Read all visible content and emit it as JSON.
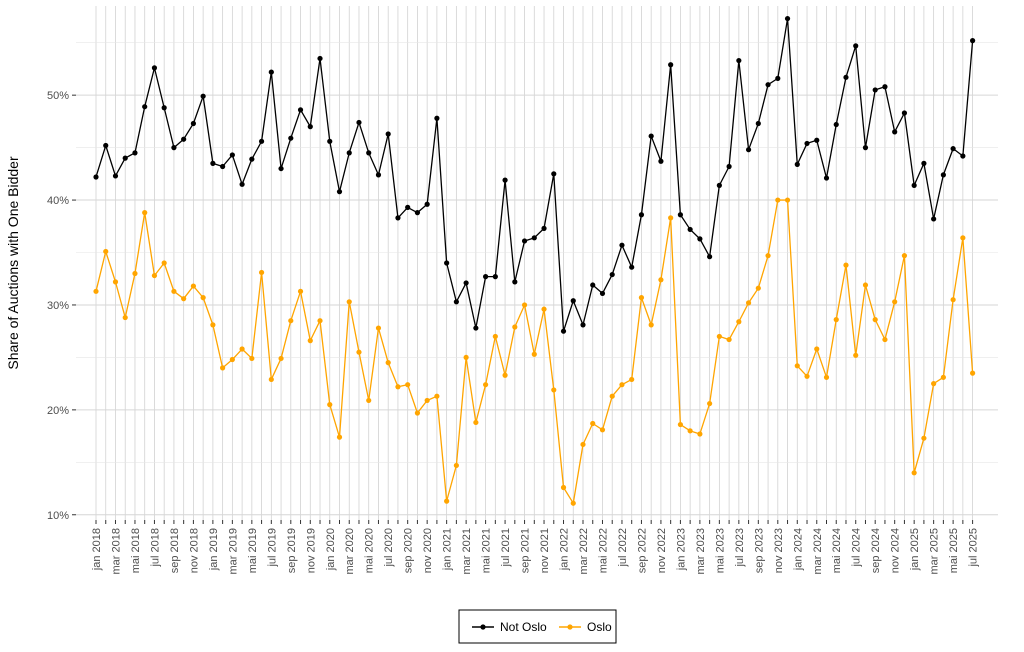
{
  "chart_data": {
    "type": "line",
    "title": "",
    "xlabel": "",
    "ylabel": "Share of Auctions with One Bidder",
    "ylim": [
      9.5,
      58.5
    ],
    "yticks": [
      10,
      20,
      30,
      40,
      50
    ],
    "ytick_labels": [
      "10%",
      "20%",
      "30%",
      "40%",
      "50%"
    ],
    "grid": true,
    "legend_position": "bottom",
    "x": [
      "2018-01",
      "2018-02",
      "2018-03",
      "2018-04",
      "2018-05",
      "2018-06",
      "2018-07",
      "2018-08",
      "2018-09",
      "2018-10",
      "2018-11",
      "2018-12",
      "2019-01",
      "2019-02",
      "2019-03",
      "2019-04",
      "2019-05",
      "2019-06",
      "2019-07",
      "2019-08",
      "2019-09",
      "2019-10",
      "2019-11",
      "2019-12",
      "2020-01",
      "2020-02",
      "2020-03",
      "2020-04",
      "2020-05",
      "2020-06",
      "2020-07",
      "2020-08",
      "2020-09",
      "2020-10",
      "2020-11",
      "2020-12",
      "2021-01",
      "2021-02",
      "2021-03",
      "2021-04",
      "2021-05",
      "2021-06",
      "2021-07",
      "2021-08",
      "2021-09",
      "2021-10",
      "2021-11",
      "2021-12",
      "2022-01",
      "2022-02",
      "2022-03",
      "2022-04",
      "2022-05",
      "2022-06",
      "2022-07",
      "2022-08",
      "2022-09",
      "2022-10",
      "2022-11",
      "2022-12",
      "2023-01",
      "2023-02",
      "2023-03",
      "2023-04",
      "2023-05",
      "2023-06",
      "2023-07",
      "2023-08",
      "2023-09",
      "2023-10",
      "2023-11",
      "2023-12",
      "2024-01",
      "2024-02",
      "2024-03",
      "2024-04",
      "2024-05",
      "2024-06",
      "2024-07",
      "2024-08",
      "2024-09",
      "2024-10",
      "2024-11",
      "2024-12",
      "2025-01",
      "2025-02",
      "2025-03",
      "2025-04",
      "2025-05",
      "2025-06",
      "2025-07"
    ],
    "x_tick_labels": [
      "jan 2018",
      "mar 2018",
      "mai 2018",
      "jul 2018",
      "sep 2018",
      "nov 2018",
      "jan 2019",
      "mar 2019",
      "mai 2019",
      "jul 2019",
      "sep 2019",
      "nov 2019",
      "jan 2020",
      "mar 2020",
      "mai 2020",
      "jul 2020",
      "sep 2020",
      "nov 2020",
      "jan 2021",
      "mar 2021",
      "mai 2021",
      "jul 2021",
      "sep 2021",
      "nov 2021",
      "jan 2022",
      "mar 2022",
      "mai 2022",
      "jul 2022",
      "sep 2022",
      "nov 2022",
      "jan 2023",
      "mar 2023",
      "mai 2023",
      "jul 2023",
      "sep 2023",
      "nov 2023",
      "jan 2024",
      "mar 2024",
      "mai 2024",
      "jul 2024",
      "sep 2024",
      "nov 2024",
      "jan 2025",
      "mar 2025",
      "mai 2025",
      "jul 2025"
    ],
    "series": [
      {
        "name": "Not Oslo",
        "color": "#000000",
        "values": [
          42.2,
          45.2,
          42.3,
          44.0,
          44.5,
          48.9,
          52.6,
          48.8,
          45.0,
          45.8,
          47.3,
          49.9,
          43.5,
          43.2,
          44.3,
          41.5,
          43.9,
          45.6,
          52.2,
          43.0,
          45.9,
          48.6,
          47.0,
          53.5,
          45.6,
          40.8,
          44.5,
          47.4,
          44.5,
          42.4,
          46.3,
          38.3,
          39.3,
          38.8,
          39.6,
          47.8,
          34.0,
          30.3,
          32.1,
          27.8,
          32.7,
          32.7,
          41.9,
          32.2,
          36.1,
          36.4,
          37.3,
          42.5,
          27.5,
          30.4,
          28.1,
          31.9,
          31.1,
          32.9,
          35.7,
          33.6,
          38.6,
          46.1,
          43.7,
          52.9,
          38.6,
          37.2,
          36.3,
          34.6,
          41.4,
          43.2,
          53.3,
          44.8,
          47.3,
          51.0,
          51.6,
          57.3,
          43.4,
          45.4,
          45.7,
          42.1,
          47.2,
          51.7,
          54.7,
          45.0,
          50.5,
          50.8,
          46.5,
          48.3,
          41.4,
          43.5,
          38.2,
          42.4,
          44.9,
          44.2,
          55.2
        ]
      },
      {
        "name": "Oslo",
        "color": "#FFA500",
        "values": [
          31.3,
          35.1,
          32.2,
          28.8,
          33.0,
          38.8,
          32.8,
          34.0,
          31.3,
          30.6,
          31.8,
          30.7,
          28.1,
          24.0,
          24.8,
          25.8,
          24.9,
          33.1,
          22.9,
          24.9,
          28.5,
          31.3,
          26.6,
          28.5,
          20.5,
          17.4,
          30.3,
          25.5,
          20.9,
          27.8,
          24.5,
          22.2,
          22.4,
          19.7,
          20.9,
          21.3,
          11.3,
          14.7,
          25.0,
          18.8,
          22.4,
          27.0,
          23.3,
          27.9,
          30.0,
          25.3,
          29.6,
          21.9,
          12.6,
          11.1,
          16.7,
          18.7,
          18.1,
          21.3,
          22.4,
          22.9,
          30.7,
          28.1,
          32.4,
          38.3,
          18.6,
          18.0,
          17.7,
          20.6,
          27.0,
          26.7,
          28.4,
          30.2,
          31.6,
          34.7,
          40.0,
          40.0,
          24.2,
          23.2,
          25.8,
          23.1,
          28.6,
          33.8,
          25.2,
          31.9,
          28.6,
          26.7,
          30.3,
          34.7,
          14.0,
          17.3,
          22.5,
          23.1,
          30.5,
          36.4,
          23.5
        ]
      }
    ]
  }
}
